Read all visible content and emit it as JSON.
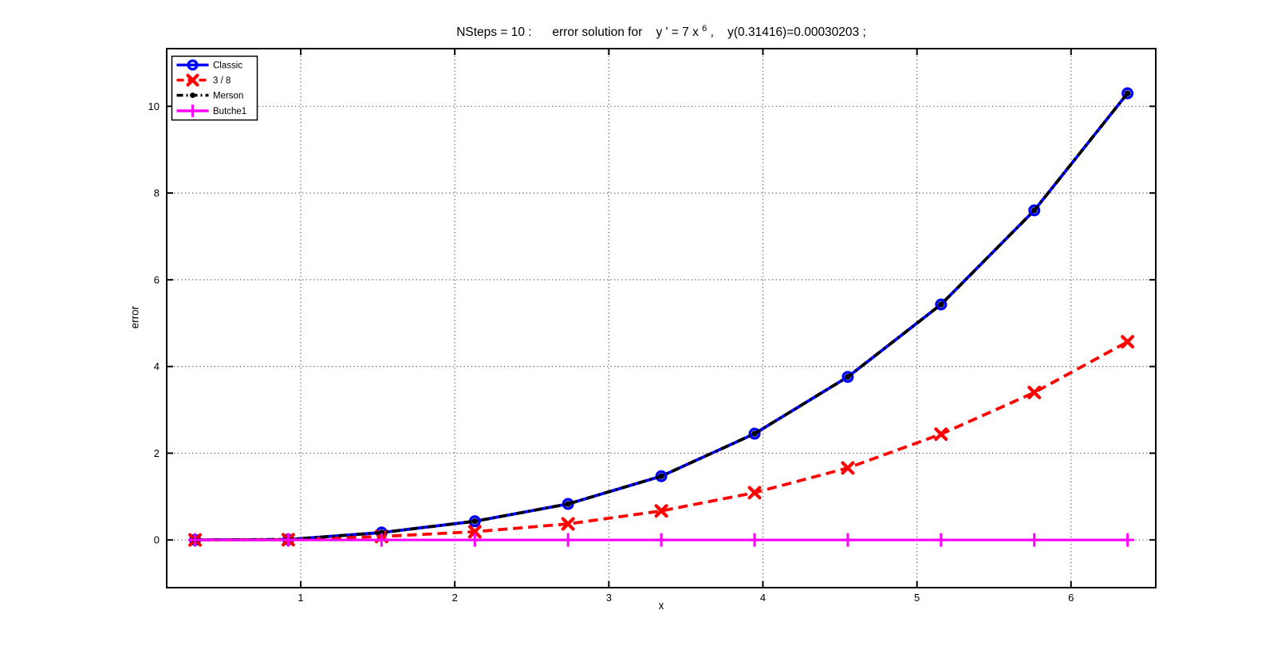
{
  "figure": {
    "background": "#ffffff",
    "frame_color": "#000000",
    "grid_color": "#555555"
  },
  "title": {
    "prefix": "NSteps = 10 :      error solution for    y ' = 7 x ",
    "sup": "6",
    "suffix": " ,    y(0.31416)=0.00030203 ;"
  },
  "chart_data": {
    "type": "line",
    "title": "NSteps = 10 : error solution for y' = 7 x^6 , y(0.31416)=0.00030203 ;",
    "xlabel": "x",
    "ylabel": "error",
    "xlim": [
      0.13,
      6.55
    ],
    "ylim": [
      -1.1,
      11.33
    ],
    "x_ticks": [
      1,
      2,
      3,
      4,
      5,
      6
    ],
    "y_ticks": [
      0,
      2,
      4,
      6,
      8,
      10
    ],
    "grid": "dotted",
    "legend_position": "top-left",
    "x": [
      0.3142,
      0.9194,
      1.5247,
      2.13,
      2.7352,
      3.3405,
      3.9458,
      4.551,
      5.1563,
      5.7616,
      6.3668
    ],
    "series": [
      {
        "name": "Classic",
        "color": "#0000ff",
        "line": "solid",
        "marker": "circle-open",
        "values": [
          0,
          0.01,
          0.17,
          0.43,
          0.83,
          1.47,
          2.45,
          3.76,
          5.43,
          7.6,
          10.3
        ]
      },
      {
        "name": "3 / 8",
        "color": "#ff0000",
        "line": "dashed",
        "marker": "x",
        "values": [
          0,
          0.005,
          0.08,
          0.19,
          0.37,
          0.67,
          1.09,
          1.66,
          2.44,
          3.4,
          4.57
        ]
      },
      {
        "name": "Merson",
        "color": "#000000",
        "line": "dashdot",
        "marker": "dot",
        "values": [
          0,
          0.01,
          0.17,
          0.43,
          0.83,
          1.47,
          2.45,
          3.76,
          5.43,
          7.6,
          10.3
        ]
      },
      {
        "name": "Butche1",
        "color": "#ff00ff",
        "line": "solid",
        "marker": "plus",
        "values": [
          0,
          0,
          0,
          0,
          0,
          0,
          0,
          0,
          0,
          0,
          0
        ]
      }
    ]
  }
}
